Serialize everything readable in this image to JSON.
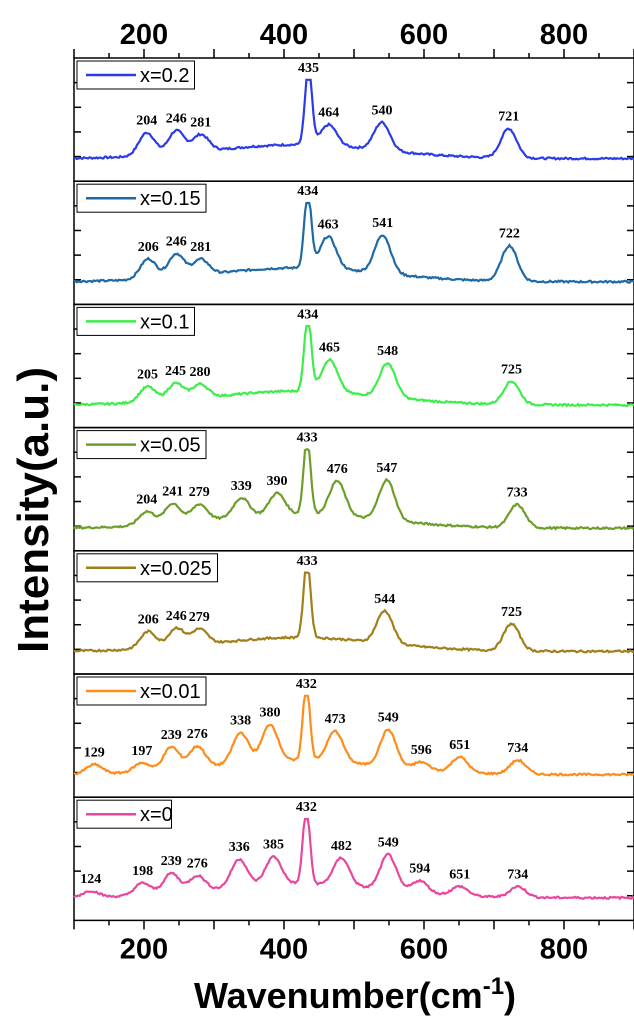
{
  "chart_data": {
    "type": "line",
    "xlabel": "Wavenumber(cm",
    "xlabel_sup": "-1",
    "xlabel_close": ")",
    "ylabel": "Intensity(a.u.)",
    "xlim": [
      100,
      900
    ],
    "xticks": [
      "200",
      "400",
      "600",
      "800"
    ],
    "xtick_values": [
      200,
      400,
      600,
      800
    ],
    "layout": "stacked panels, legend in top-left of each panel, ticks on top and bottom",
    "panels": [
      {
        "name": "x=0.2",
        "color": "#2b3be8",
        "peaks": [
          {
            "x": 204,
            "label": "204",
            "h": 0.3
          },
          {
            "x": 246,
            "label": "246",
            "h": 0.3
          },
          {
            "x": 281,
            "label": "281",
            "h": 0.22
          },
          {
            "x": 435,
            "label": "435",
            "h": 1.0
          },
          {
            "x": 464,
            "label": "464",
            "h": 0.27
          },
          {
            "x": 540,
            "label": "540",
            "h": 0.36
          },
          {
            "x": 721,
            "label": "721",
            "h": 0.38
          }
        ]
      },
      {
        "name": "x=0.15",
        "color": "#1f6aa5",
        "peaks": [
          {
            "x": 206,
            "label": "206",
            "h": 0.26
          },
          {
            "x": 246,
            "label": "246",
            "h": 0.3
          },
          {
            "x": 281,
            "label": "281",
            "h": 0.2
          },
          {
            "x": 434,
            "label": "434",
            "h": 1.0
          },
          {
            "x": 463,
            "label": "463",
            "h": 0.42
          },
          {
            "x": 541,
            "label": "541",
            "h": 0.5
          },
          {
            "x": 722,
            "label": "722",
            "h": 0.46
          }
        ]
      },
      {
        "name": "x=0.1",
        "color": "#3cee4a",
        "peaks": [
          {
            "x": 205,
            "label": "205",
            "h": 0.2
          },
          {
            "x": 245,
            "label": "245",
            "h": 0.22
          },
          {
            "x": 280,
            "label": "280",
            "h": 0.18
          },
          {
            "x": 434,
            "label": "434",
            "h": 1.0
          },
          {
            "x": 465,
            "label": "465",
            "h": 0.42
          },
          {
            "x": 548,
            "label": "548",
            "h": 0.44
          },
          {
            "x": 725,
            "label": "725",
            "h": 0.3
          }
        ]
      },
      {
        "name": "x=0.05",
        "color": "#6e9e2a",
        "peaks": [
          {
            "x": 204,
            "label": "204",
            "h": 0.18
          },
          {
            "x": 241,
            "label": "241",
            "h": 0.26
          },
          {
            "x": 279,
            "label": "279",
            "h": 0.22
          },
          {
            "x": 339,
            "label": "339",
            "h": 0.25
          },
          {
            "x": 390,
            "label": "390",
            "h": 0.28
          },
          {
            "x": 433,
            "label": "433",
            "h": 1.0
          },
          {
            "x": 476,
            "label": "476",
            "h": 0.45
          },
          {
            "x": 547,
            "label": "547",
            "h": 0.52
          },
          {
            "x": 733,
            "label": "733",
            "h": 0.3
          }
        ]
      },
      {
        "name": "x=0.025",
        "color": "#a17f1a",
        "peaks": [
          {
            "x": 206,
            "label": "206",
            "h": 0.22
          },
          {
            "x": 246,
            "label": "246",
            "h": 0.24
          },
          {
            "x": 279,
            "label": "279",
            "h": 0.2
          },
          {
            "x": 433,
            "label": "433",
            "h": 1.0
          },
          {
            "x": 544,
            "label": "544",
            "h": 0.42
          },
          {
            "x": 725,
            "label": "725",
            "h": 0.35
          }
        ]
      },
      {
        "name": "x=0.01",
        "color": "#ff8c1a",
        "peaks": [
          {
            "x": 129,
            "label": "129",
            "h": 0.12
          },
          {
            "x": 197,
            "label": "197",
            "h": 0.12
          },
          {
            "x": 239,
            "label": "239",
            "h": 0.3
          },
          {
            "x": 276,
            "label": "276",
            "h": 0.28
          },
          {
            "x": 338,
            "label": "338",
            "h": 0.4
          },
          {
            "x": 380,
            "label": "380",
            "h": 0.48
          },
          {
            "x": 432,
            "label": "432",
            "h": 1.0
          },
          {
            "x": 473,
            "label": "473",
            "h": 0.4
          },
          {
            "x": 549,
            "label": "549",
            "h": 0.48
          },
          {
            "x": 596,
            "label": "596",
            "h": 0.1
          },
          {
            "x": 651,
            "label": "651",
            "h": 0.2
          },
          {
            "x": 734,
            "label": "734",
            "h": 0.18
          }
        ]
      },
      {
        "name": "x=0",
        "color": "#e9479c",
        "peaks": [
          {
            "x": 124,
            "label": "124",
            "h": 0.08
          },
          {
            "x": 198,
            "label": "198",
            "h": 0.16
          },
          {
            "x": 239,
            "label": "239",
            "h": 0.26
          },
          {
            "x": 276,
            "label": "276",
            "h": 0.2
          },
          {
            "x": 336,
            "label": "336",
            "h": 0.36
          },
          {
            "x": 385,
            "label": "385",
            "h": 0.36
          },
          {
            "x": 432,
            "label": "432",
            "h": 1.0
          },
          {
            "x": 482,
            "label": "482",
            "h": 0.36
          },
          {
            "x": 549,
            "label": "549",
            "h": 0.46
          },
          {
            "x": 594,
            "label": "594",
            "h": 0.16
          },
          {
            "x": 651,
            "label": "651",
            "h": 0.12
          },
          {
            "x": 734,
            "label": "734",
            "h": 0.14
          }
        ]
      }
    ]
  }
}
